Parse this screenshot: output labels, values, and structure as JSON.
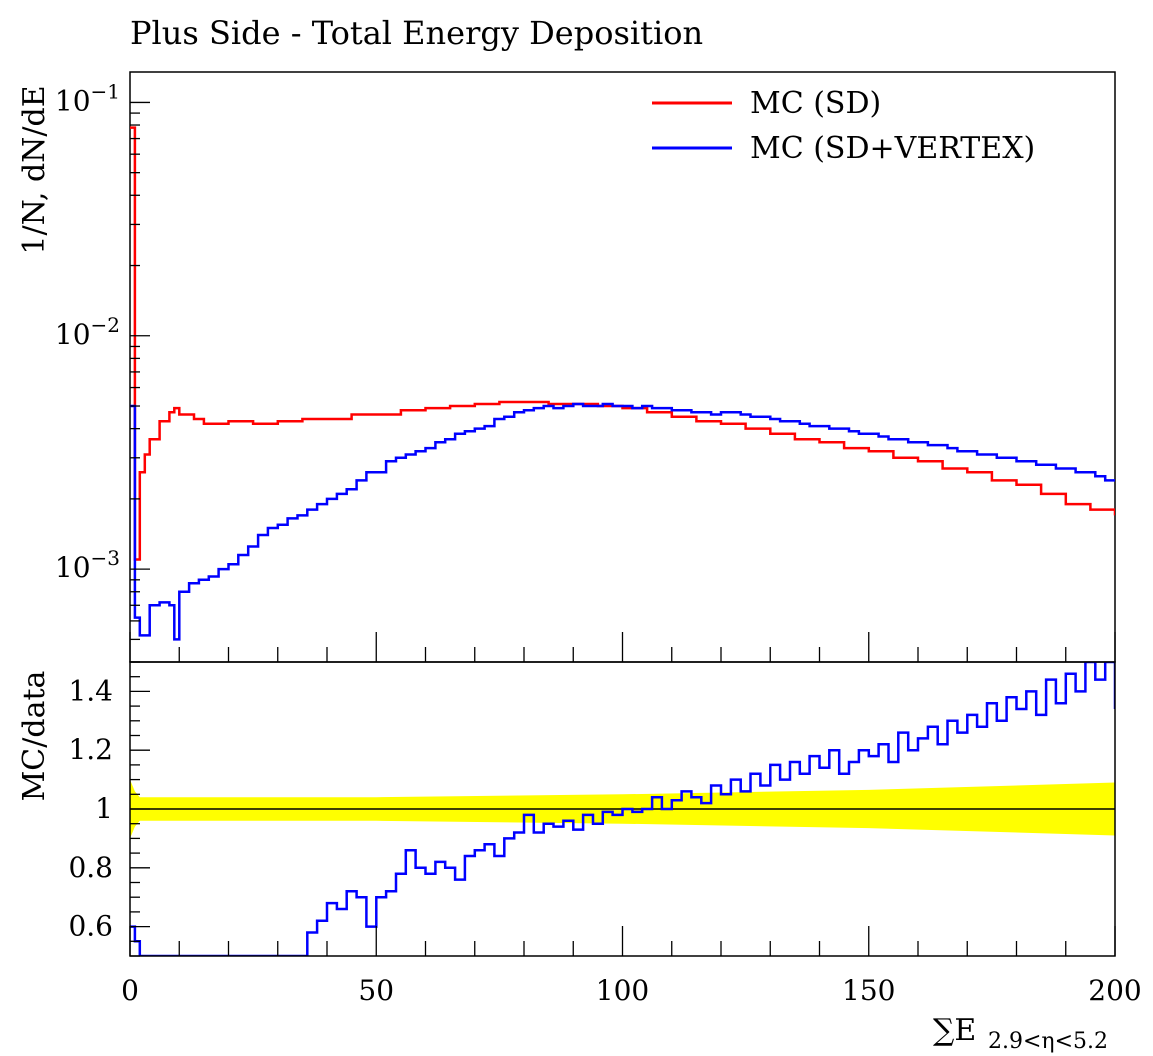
{
  "title": "Plus Side - Total Energy Deposition",
  "colors": {
    "sd": "#ff0000",
    "vertex": "#0000ff",
    "band": "#ffff00",
    "axis": "#000000"
  },
  "chart_data": [
    {
      "type": "line",
      "panel": "main",
      "ylabel": "1/N, dN/dE",
      "yscale": "log",
      "xlim": [
        0,
        200
      ],
      "ylim": [
        0.0004,
        0.135
      ],
      "y_ticks": [
        {
          "value": 0.1,
          "base": "10",
          "exp": "−1"
        },
        {
          "value": 0.01,
          "base": "10",
          "exp": "−2"
        },
        {
          "value": 0.001,
          "base": "10",
          "exp": "−3"
        }
      ],
      "legend_position": "top-right",
      "series": [
        {
          "name": "MC (SD)",
          "color": "#ff0000",
          "points": [
            [
              0,
              0.078
            ],
            [
              1,
              0.0011
            ],
            [
              2,
              0.0026
            ],
            [
              3,
              0.0031
            ],
            [
              4,
              0.0036
            ],
            [
              6,
              0.0043
            ],
            [
              8,
              0.0047
            ],
            [
              9,
              0.0049
            ],
            [
              10,
              0.0046
            ],
            [
              13,
              0.0044
            ],
            [
              15,
              0.0042
            ],
            [
              20,
              0.0043
            ],
            [
              25,
              0.0042
            ],
            [
              30,
              0.0043
            ],
            [
              35,
              0.0044
            ],
            [
              40,
              0.0044
            ],
            [
              45,
              0.0046
            ],
            [
              50,
              0.0046
            ],
            [
              55,
              0.0048
            ],
            [
              60,
              0.0049
            ],
            [
              65,
              0.005
            ],
            [
              70,
              0.0051
            ],
            [
              75,
              0.0052
            ],
            [
              80,
              0.0052
            ],
            [
              85,
              0.0051
            ],
            [
              90,
              0.0051
            ],
            [
              95,
              0.005
            ],
            [
              100,
              0.0049
            ],
            [
              105,
              0.0047
            ],
            [
              110,
              0.0045
            ],
            [
              115,
              0.0043
            ],
            [
              120,
              0.0042
            ],
            [
              125,
              0.004
            ],
            [
              130,
              0.0038
            ],
            [
              135,
              0.0036
            ],
            [
              140,
              0.0035
            ],
            [
              145,
              0.0033
            ],
            [
              150,
              0.0032
            ],
            [
              155,
              0.003
            ],
            [
              160,
              0.0029
            ],
            [
              165,
              0.0027
            ],
            [
              170,
              0.0026
            ],
            [
              175,
              0.0024
            ],
            [
              180,
              0.0023
            ],
            [
              185,
              0.0021
            ],
            [
              190,
              0.0019
            ],
            [
              195,
              0.0018
            ],
            [
              200,
              0.0017
            ]
          ]
        },
        {
          "name": "MC (SD+VERTEX)",
          "color": "#0000ff",
          "points": [
            [
              0,
              0.005
            ],
            [
              1,
              0.00062
            ],
            [
              2,
              0.00052
            ],
            [
              4,
              0.0007
            ],
            [
              6,
              0.00072
            ],
            [
              8,
              0.0007
            ],
            [
              9,
              0.0005
            ],
            [
              10,
              0.0008
            ],
            [
              12,
              0.00087
            ],
            [
              14,
              0.0009
            ],
            [
              16,
              0.00093
            ],
            [
              18,
              0.001
            ],
            [
              20,
              0.00105
            ],
            [
              22,
              0.00115
            ],
            [
              24,
              0.00125
            ],
            [
              26,
              0.0014
            ],
            [
              28,
              0.0015
            ],
            [
              30,
              0.00155
            ],
            [
              32,
              0.00165
            ],
            [
              34,
              0.0017
            ],
            [
              36,
              0.0018
            ],
            [
              38,
              0.0019
            ],
            [
              40,
              0.002
            ],
            [
              42,
              0.0021
            ],
            [
              44,
              0.0022
            ],
            [
              46,
              0.0024
            ],
            [
              48,
              0.0026
            ],
            [
              50,
              0.0026
            ],
            [
              52,
              0.0029
            ],
            [
              54,
              0.003
            ],
            [
              56,
              0.0031
            ],
            [
              58,
              0.0032
            ],
            [
              60,
              0.0033
            ],
            [
              62,
              0.0035
            ],
            [
              64,
              0.0036
            ],
            [
              66,
              0.0038
            ],
            [
              68,
              0.0039
            ],
            [
              70,
              0.004
            ],
            [
              72,
              0.0041
            ],
            [
              74,
              0.0044
            ],
            [
              76,
              0.0045
            ],
            [
              78,
              0.0047
            ],
            [
              80,
              0.0048
            ],
            [
              82,
              0.0049
            ],
            [
              84,
              0.005
            ],
            [
              86,
              0.0049
            ],
            [
              88,
              0.005
            ],
            [
              90,
              0.0051
            ],
            [
              92,
              0.005
            ],
            [
              94,
              0.005
            ],
            [
              96,
              0.0051
            ],
            [
              98,
              0.005
            ],
            [
              100,
              0.005
            ],
            [
              102,
              0.0049
            ],
            [
              104,
              0.005
            ],
            [
              106,
              0.0049
            ],
            [
              108,
              0.0049
            ],
            [
              110,
              0.0048
            ],
            [
              112,
              0.0048
            ],
            [
              114,
              0.0047
            ],
            [
              116,
              0.0047
            ],
            [
              118,
              0.0046
            ],
            [
              120,
              0.0047
            ],
            [
              122,
              0.0047
            ],
            [
              124,
              0.0046
            ],
            [
              126,
              0.0045
            ],
            [
              128,
              0.0045
            ],
            [
              130,
              0.0044
            ],
            [
              132,
              0.0043
            ],
            [
              134,
              0.0043
            ],
            [
              136,
              0.0042
            ],
            [
              138,
              0.0041
            ],
            [
              140,
              0.0041
            ],
            [
              142,
              0.004
            ],
            [
              144,
              0.004
            ],
            [
              146,
              0.0039
            ],
            [
              148,
              0.0038
            ],
            [
              150,
              0.0038
            ],
            [
              152,
              0.0037
            ],
            [
              154,
              0.0036
            ],
            [
              156,
              0.0036
            ],
            [
              158,
              0.0035
            ],
            [
              160,
              0.0035
            ],
            [
              162,
              0.0034
            ],
            [
              164,
              0.0034
            ],
            [
              166,
              0.0033
            ],
            [
              168,
              0.0032
            ],
            [
              170,
              0.0032
            ],
            [
              172,
              0.0031
            ],
            [
              174,
              0.0031
            ],
            [
              176,
              0.003
            ],
            [
              178,
              0.003
            ],
            [
              180,
              0.0029
            ],
            [
              182,
              0.0029
            ],
            [
              184,
              0.0028
            ],
            [
              186,
              0.0028
            ],
            [
              188,
              0.0027
            ],
            [
              190,
              0.0027
            ],
            [
              192,
              0.0026
            ],
            [
              194,
              0.0026
            ],
            [
              196,
              0.0025
            ],
            [
              198,
              0.0024
            ],
            [
              200,
              0.0024
            ]
          ]
        }
      ]
    },
    {
      "type": "line",
      "panel": "ratio",
      "xlabel": "∑E",
      "xlabel_sub": "2.9<η<5.2",
      "ylabel": "MC/data",
      "xlim": [
        0,
        200
      ],
      "ylim": [
        0.5,
        1.5
      ],
      "x_ticks": [
        "0",
        "50",
        "100",
        "150",
        "200"
      ],
      "y_ticks": [
        "0.6",
        "0.8",
        "1",
        "1.2",
        "1.4"
      ],
      "reference_line": 1,
      "uncertainty_band": {
        "x": [
          0,
          1,
          2,
          50,
          100,
          150,
          200
        ],
        "half_width": [
          0.1,
          0.06,
          0.04,
          0.04,
          0.05,
          0.065,
          0.09
        ]
      },
      "series": [
        {
          "name": "MC (SD+VERTEX)",
          "color": "#0000ff",
          "points": [
            [
              0,
              0.6
            ],
            [
              1,
              0.55
            ],
            [
              2,
              0.5
            ],
            [
              34,
              0.5
            ],
            [
              36,
              0.58
            ],
            [
              38,
              0.62
            ],
            [
              40,
              0.68
            ],
            [
              42,
              0.66
            ],
            [
              44,
              0.72
            ],
            [
              46,
              0.7
            ],
            [
              48,
              0.6
            ],
            [
              50,
              0.7
            ],
            [
              52,
              0.72
            ],
            [
              54,
              0.78
            ],
            [
              56,
              0.86
            ],
            [
              58,
              0.8
            ],
            [
              60,
              0.78
            ],
            [
              62,
              0.82
            ],
            [
              64,
              0.8
            ],
            [
              66,
              0.76
            ],
            [
              68,
              0.84
            ],
            [
              70,
              0.86
            ],
            [
              72,
              0.88
            ],
            [
              74,
              0.84
            ],
            [
              76,
              0.9
            ],
            [
              78,
              0.92
            ],
            [
              80,
              0.98
            ],
            [
              82,
              0.92
            ],
            [
              84,
              0.95
            ],
            [
              86,
              0.94
            ],
            [
              88,
              0.96
            ],
            [
              90,
              0.93
            ],
            [
              92,
              0.98
            ],
            [
              94,
              0.95
            ],
            [
              96,
              0.99
            ],
            [
              98,
              0.98
            ],
            [
              100,
              1.0
            ],
            [
              102,
              0.99
            ],
            [
              104,
              1.0
            ],
            [
              106,
              1.04
            ],
            [
              108,
              1.0
            ],
            [
              110,
              1.03
            ],
            [
              112,
              1.06
            ],
            [
              114,
              1.04
            ],
            [
              116,
              1.02
            ],
            [
              118,
              1.08
            ],
            [
              120,
              1.05
            ],
            [
              122,
              1.1
            ],
            [
              124,
              1.06
            ],
            [
              126,
              1.12
            ],
            [
              128,
              1.08
            ],
            [
              130,
              1.15
            ],
            [
              132,
              1.1
            ],
            [
              134,
              1.16
            ],
            [
              136,
              1.12
            ],
            [
              138,
              1.18
            ],
            [
              140,
              1.14
            ],
            [
              142,
              1.2
            ],
            [
              144,
              1.12
            ],
            [
              146,
              1.16
            ],
            [
              148,
              1.2
            ],
            [
              150,
              1.18
            ],
            [
              152,
              1.22
            ],
            [
              154,
              1.16
            ],
            [
              156,
              1.26
            ],
            [
              158,
              1.2
            ],
            [
              160,
              1.24
            ],
            [
              162,
              1.28
            ],
            [
              164,
              1.22
            ],
            [
              166,
              1.3
            ],
            [
              168,
              1.26
            ],
            [
              170,
              1.32
            ],
            [
              172,
              1.28
            ],
            [
              174,
              1.36
            ],
            [
              176,
              1.3
            ],
            [
              178,
              1.38
            ],
            [
              180,
              1.34
            ],
            [
              182,
              1.4
            ],
            [
              184,
              1.32
            ],
            [
              186,
              1.44
            ],
            [
              188,
              1.36
            ],
            [
              190,
              1.46
            ],
            [
              192,
              1.4
            ],
            [
              194,
              1.5
            ],
            [
              196,
              1.44
            ],
            [
              198,
              1.5
            ],
            [
              200,
              1.34
            ]
          ]
        }
      ]
    }
  ]
}
